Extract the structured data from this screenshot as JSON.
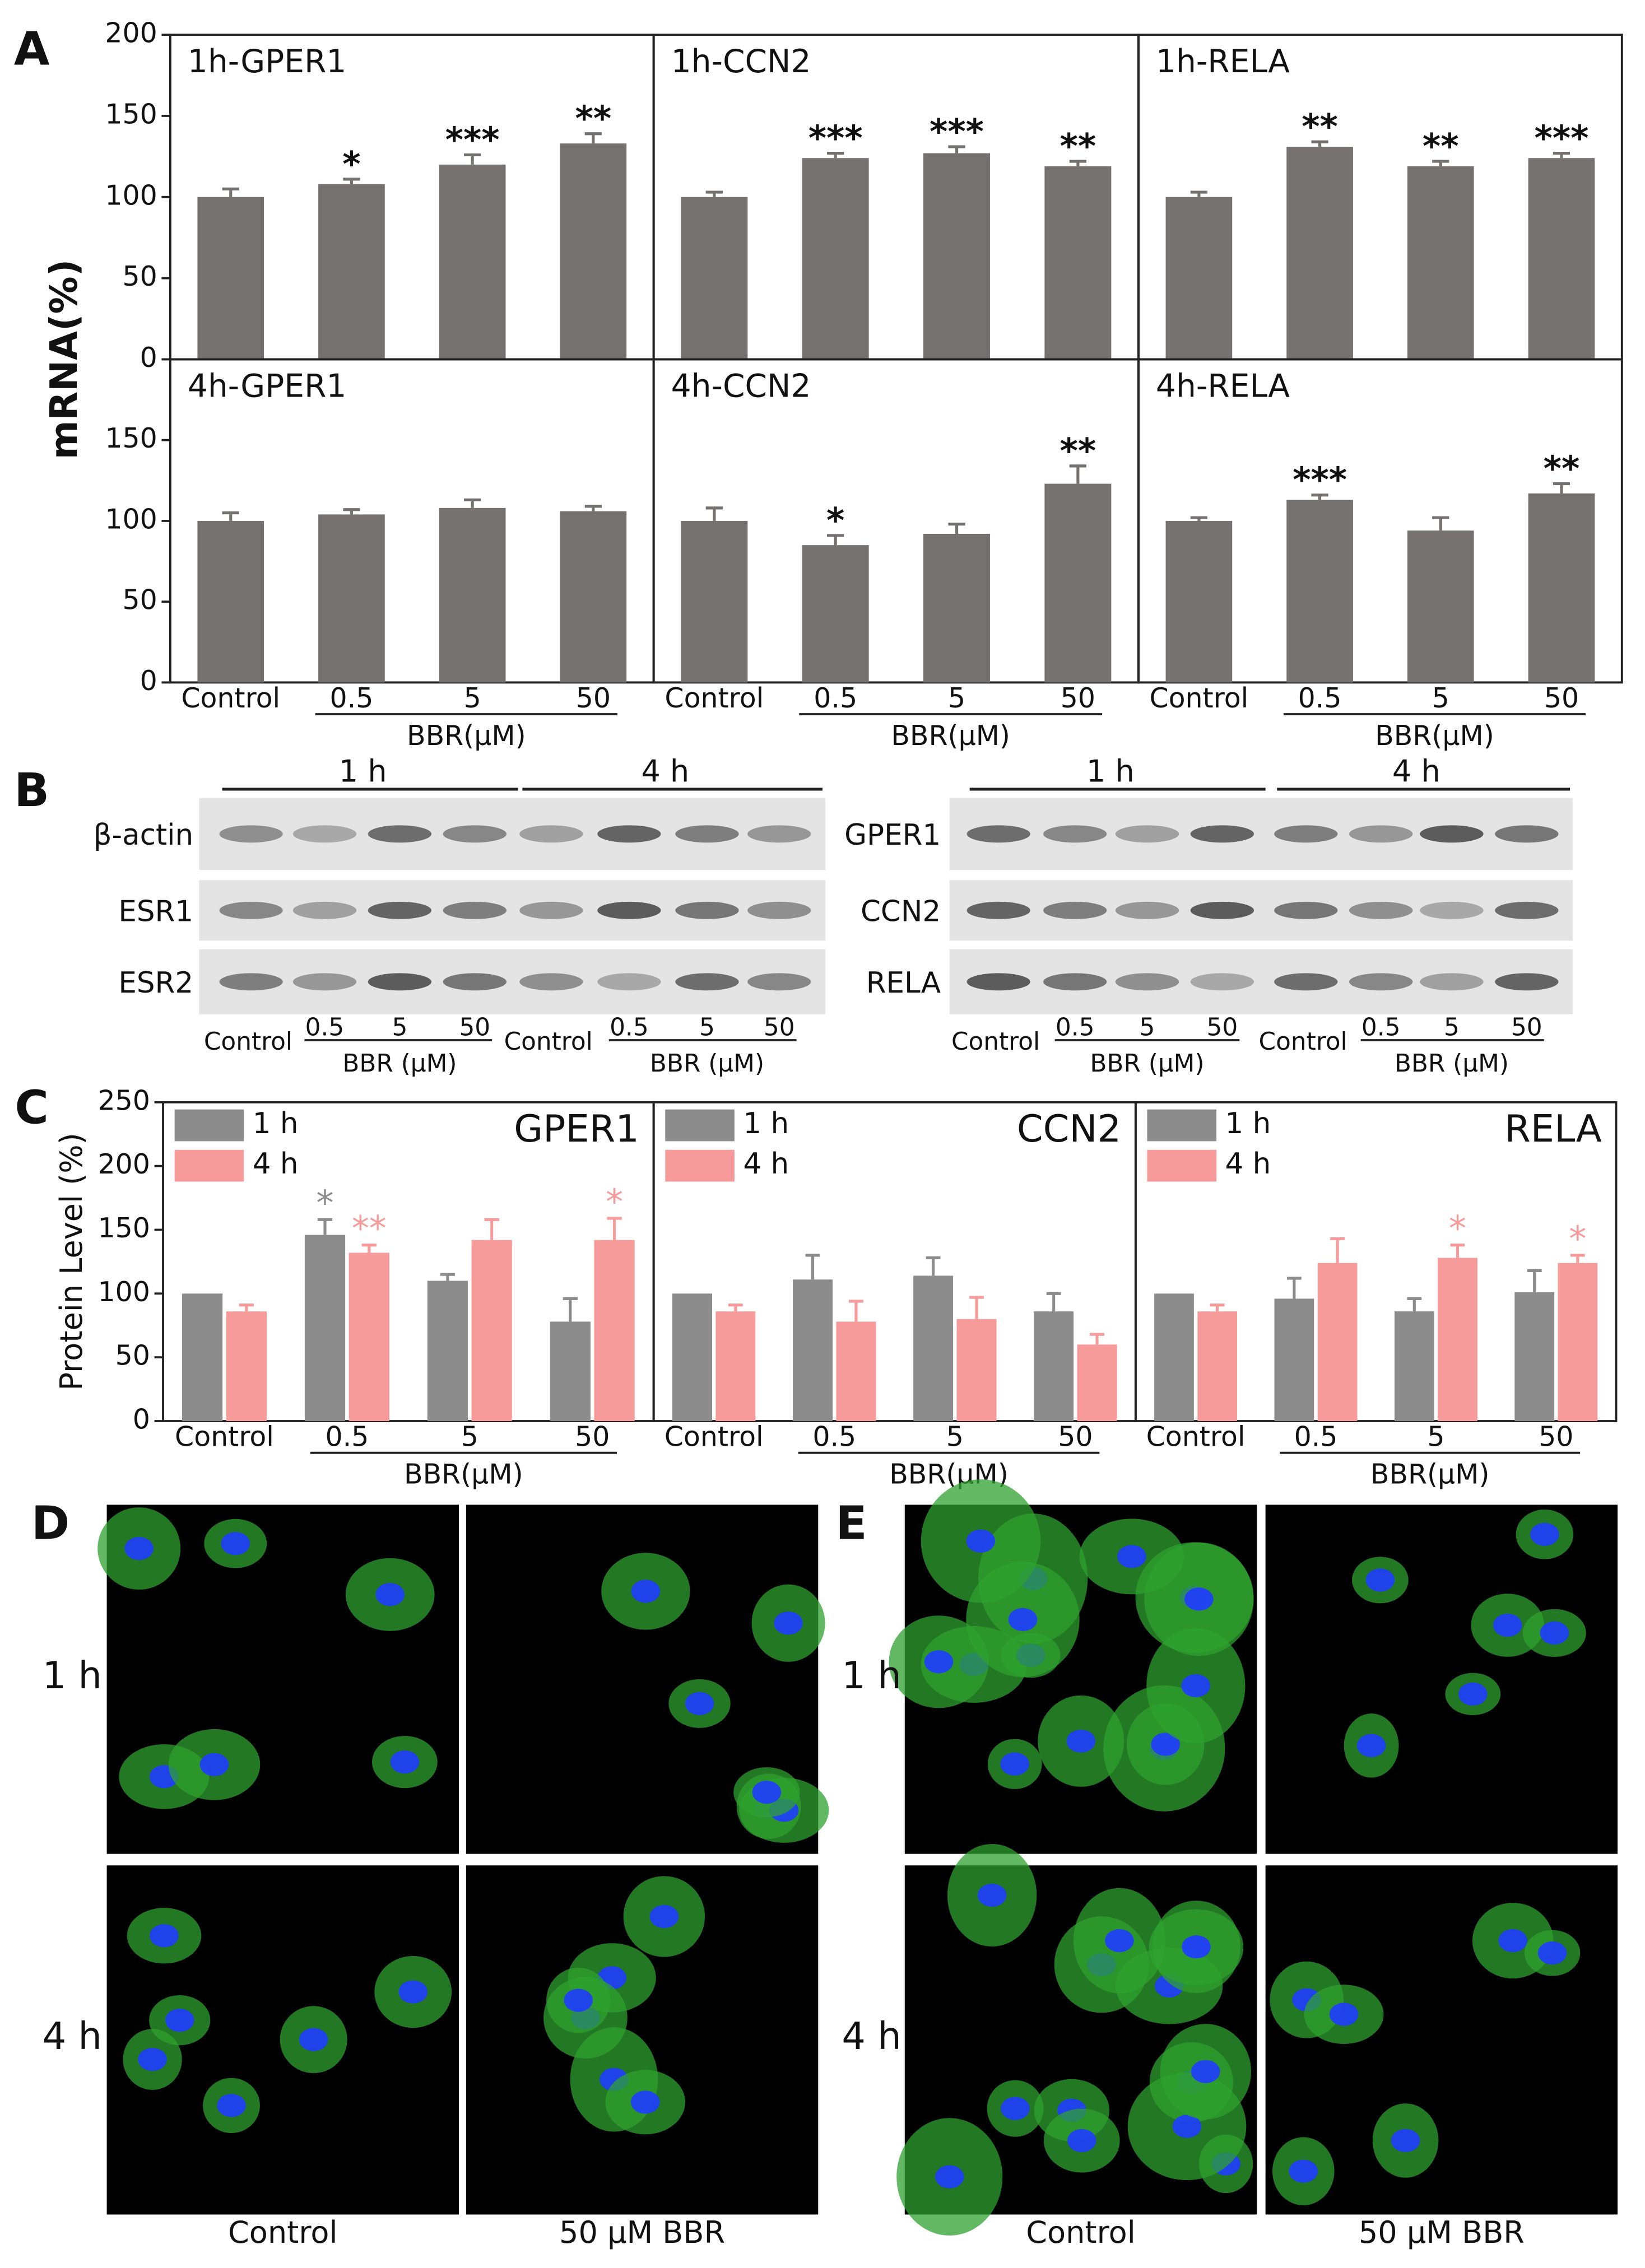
{
  "panel_labels": [
    "A",
    "B",
    "C",
    "D",
    "E"
  ],
  "chart_data": [
    {
      "type": "bar",
      "title": "1h-GPER1",
      "ylabel": "mRNA(%)",
      "color": "#767171",
      "ylim": [
        0,
        200
      ],
      "yticks": [
        0,
        50,
        100,
        150,
        200
      ],
      "values": [
        100,
        108,
        120,
        133
      ],
      "errors": [
        5,
        3,
        6,
        6
      ],
      "annotations": [
        null,
        "*",
        "***",
        "**"
      ]
    },
    {
      "type": "bar",
      "title": "1h-CCN2",
      "color": "#767171",
      "ylim": [
        0,
        200
      ],
      "values": [
        100,
        124,
        127,
        119
      ],
      "errors": [
        3,
        3,
        4,
        3
      ],
      "annotations": [
        null,
        "***",
        "***",
        "**"
      ]
    },
    {
      "type": "bar",
      "title": "1h-RELA",
      "color": "#767171",
      "ylim": [
        0,
        200
      ],
      "values": [
        100,
        131,
        119,
        124
      ],
      "errors": [
        3,
        3,
        3,
        3
      ],
      "annotations": [
        null,
        "**",
        "**",
        "***"
      ]
    },
    {
      "type": "bar",
      "title": "4h-GPER1",
      "color": "#767171",
      "ylim": [
        0,
        200
      ],
      "yticks": [
        0,
        50,
        100,
        150
      ],
      "categories": [
        "Control",
        "0.5",
        "5",
        "50"
      ],
      "xlabel": "BBR(μM)",
      "values": [
        100,
        104,
        108,
        106
      ],
      "errors": [
        5,
        3,
        5,
        3
      ],
      "annotations": [
        null,
        null,
        null,
        null
      ]
    },
    {
      "type": "bar",
      "title": "4h-CCN2",
      "color": "#767171",
      "ylim": [
        0,
        200
      ],
      "categories": [
        "Control",
        "0.5",
        "5",
        "50"
      ],
      "xlabel": "BBR(μM)",
      "values": [
        100,
        85,
        92,
        123
      ],
      "errors": [
        8,
        6,
        6,
        11
      ],
      "annotations": [
        null,
        "*",
        null,
        "**"
      ]
    },
    {
      "type": "bar",
      "title": "4h-RELA",
      "color": "#767171",
      "ylim": [
        0,
        200
      ],
      "categories": [
        "Control",
        "0.5",
        "5",
        "50"
      ],
      "xlabel": "BBR(μM)",
      "values": [
        100,
        113,
        94,
        117
      ],
      "errors": [
        2,
        3,
        8,
        6
      ],
      "annotations": [
        null,
        "***",
        null,
        "**"
      ]
    },
    {
      "type": "grouped_bar",
      "title": "GPER1",
      "ylabel": "Protein Level (%)",
      "ylim": [
        0,
        250
      ],
      "yticks": [
        0,
        50,
        100,
        150,
        200,
        250
      ],
      "categories": [
        "Control",
        "0.5",
        "5",
        "50"
      ],
      "xlabel": "BBR(μM)",
      "series": [
        {
          "name": "1 h",
          "color": "#8c8c8c",
          "values": [
            100,
            146,
            110,
            78
          ],
          "errors": [
            null,
            12,
            5,
            18
          ],
          "annotations": [
            null,
            "*",
            null,
            null
          ]
        },
        {
          "name": "4 h",
          "color": "#f79a9a",
          "values": [
            86,
            132,
            142,
            142
          ],
          "errors": [
            5,
            6,
            16,
            17
          ],
          "annotations": [
            null,
            "**",
            null,
            "*"
          ]
        }
      ]
    },
    {
      "type": "grouped_bar",
      "title": "CCN2",
      "ylim": [
        0,
        250
      ],
      "categories": [
        "Control",
        "0.5",
        "5",
        "50"
      ],
      "xlabel": "BBR(μM)",
      "series": [
        {
          "name": "1 h",
          "color": "#8c8c8c",
          "values": [
            100,
            111,
            114,
            86
          ],
          "errors": [
            null,
            19,
            14,
            14
          ],
          "annotations": [
            null,
            null,
            null,
            null
          ]
        },
        {
          "name": "4 h",
          "color": "#f79a9a",
          "values": [
            86,
            78,
            80,
            60
          ],
          "errors": [
            5,
            16,
            17,
            8
          ],
          "annotations": [
            null,
            null,
            null,
            null
          ]
        }
      ]
    },
    {
      "type": "grouped_bar",
      "title": "RELA",
      "ylim": [
        0,
        250
      ],
      "categories": [
        "Control",
        "0.5",
        "5",
        "50"
      ],
      "xlabel": "BBR(μM)",
      "series": [
        {
          "name": "1 h",
          "color": "#8c8c8c",
          "values": [
            100,
            96,
            86,
            101
          ],
          "errors": [
            null,
            16,
            10,
            17
          ],
          "annotations": [
            null,
            null,
            null,
            null
          ]
        },
        {
          "name": "4 h",
          "color": "#f79a9a",
          "values": [
            86,
            124,
            128,
            124
          ],
          "errors": [
            5,
            19,
            10,
            6
          ],
          "annotations": [
            null,
            null,
            "*",
            "*"
          ]
        }
      ]
    }
  ],
  "blots": {
    "time_points": [
      "1 h",
      "4 h"
    ],
    "left_rows": [
      "β-actin",
      "ESR1",
      "ESR2"
    ],
    "right_rows": [
      "GPER1",
      "CCN2",
      "RELA"
    ],
    "control": "Control",
    "doses": [
      "0.5",
      "5",
      "50"
    ],
    "group": "BBR (μM)"
  },
  "micrographs": {
    "rows": [
      "1 h",
      "4 h"
    ],
    "columns": [
      "Control",
      "50 μM BBR"
    ]
  }
}
